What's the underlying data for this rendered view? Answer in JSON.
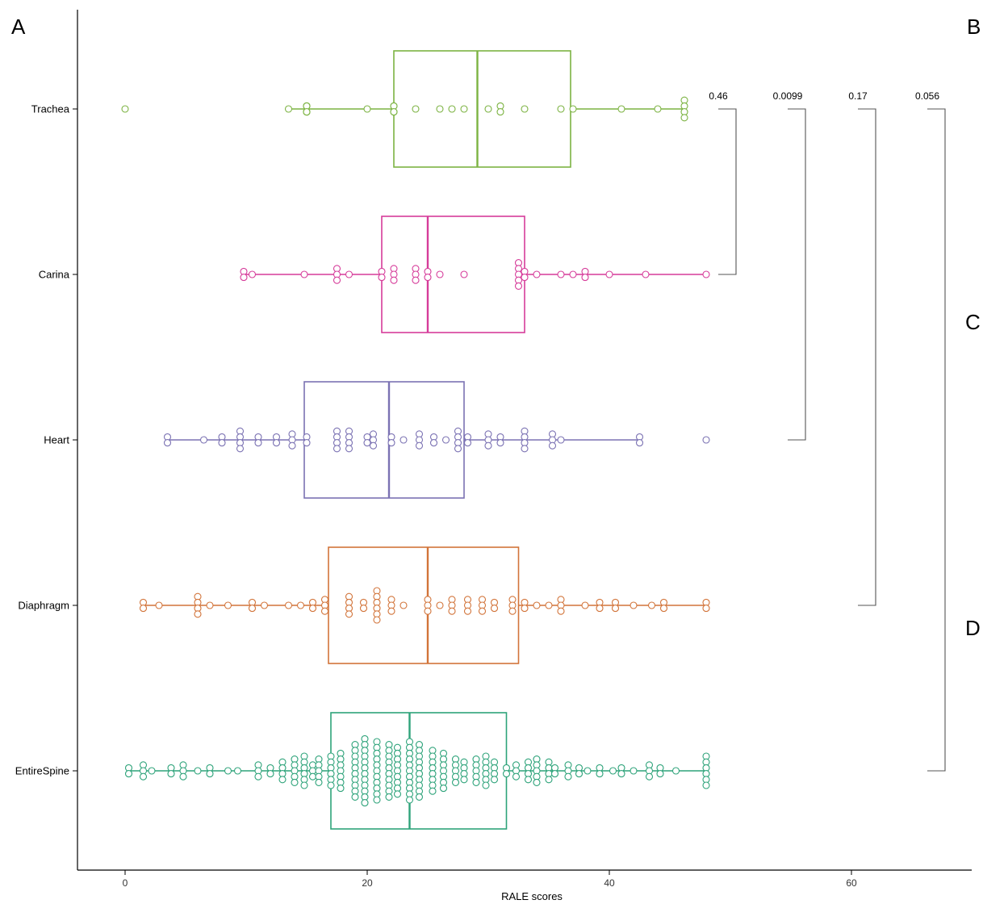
{
  "panel_labels": [
    "A",
    "B",
    "C",
    "D"
  ],
  "colors": {
    "Trachea": "#7cb342",
    "Carina": "#d63c9a",
    "Heart": "#7b72b3",
    "Diaphragm": "#d2743a",
    "EntireSpine": "#2ea37a"
  },
  "chart_data": {
    "type": "box",
    "orientation": "horizontal",
    "xlabel": "RALE scores",
    "ylabel": "",
    "xlim": [
      -4,
      70
    ],
    "xticks": [
      0,
      20,
      40,
      60
    ],
    "categories": [
      "Trachea",
      "Carina",
      "Heart",
      "Diaphragm",
      "EntireSpine"
    ],
    "series": [
      {
        "name": "Trachea",
        "box": {
          "whisker_low": 13.5,
          "q1": 22.2,
          "median": 29.1,
          "q3": 36.8,
          "whisker_high": 46.2
        },
        "outliers": [
          0
        ],
        "points": [
          [
            13.5,
            1
          ],
          [
            15,
            2
          ],
          [
            15,
            2
          ],
          [
            15,
            2
          ],
          [
            20,
            1
          ],
          [
            22.2,
            2
          ],
          [
            22.2,
            2
          ],
          [
            24,
            1
          ],
          [
            26,
            1
          ],
          [
            27,
            1
          ],
          [
            28,
            1
          ],
          [
            30,
            1
          ],
          [
            31,
            2
          ],
          [
            33,
            1
          ],
          [
            36,
            1
          ],
          [
            37,
            1
          ],
          [
            41,
            1
          ],
          [
            44,
            1
          ],
          [
            46.2,
            4
          ],
          [
            0,
            1
          ]
        ]
      },
      {
        "name": "Carina",
        "box": {
          "whisker_low": 9.8,
          "q1": 21.2,
          "median": 25,
          "q3": 33,
          "whisker_high": 48
        },
        "outliers": [],
        "points": [
          [
            9.8,
            2
          ],
          [
            10.5,
            1
          ],
          [
            14.8,
            1
          ],
          [
            17.5,
            3
          ],
          [
            18.5,
            1
          ],
          [
            21.2,
            2
          ],
          [
            22.2,
            3
          ],
          [
            24,
            3
          ],
          [
            25,
            2
          ],
          [
            26,
            1
          ],
          [
            28,
            1
          ],
          [
            32.5,
            5
          ],
          [
            33,
            2
          ],
          [
            34,
            1
          ],
          [
            36,
            1
          ],
          [
            37,
            1
          ],
          [
            38,
            2
          ],
          [
            40,
            1
          ],
          [
            43,
            1
          ],
          [
            48,
            1
          ]
        ]
      },
      {
        "name": "Heart",
        "box": {
          "whisker_low": 3.5,
          "q1": 14.8,
          "median": 21.8,
          "q3": 28,
          "whisker_high": 42.5
        },
        "outliers": [
          48
        ],
        "points": [
          [
            3.5,
            2
          ],
          [
            6.5,
            1
          ],
          [
            8,
            2
          ],
          [
            9.5,
            4
          ],
          [
            11,
            2
          ],
          [
            12.5,
            2
          ],
          [
            13.8,
            3
          ],
          [
            15,
            2
          ],
          [
            17.5,
            4
          ],
          [
            18.5,
            4
          ],
          [
            20,
            2
          ],
          [
            20.5,
            3
          ],
          [
            22,
            2
          ],
          [
            23,
            1
          ],
          [
            24.3,
            3
          ],
          [
            25.5,
            2
          ],
          [
            26.5,
            1
          ],
          [
            27.5,
            4
          ],
          [
            28.3,
            2
          ],
          [
            30,
            3
          ],
          [
            31,
            2
          ],
          [
            33,
            4
          ],
          [
            35.3,
            3
          ],
          [
            36,
            1
          ],
          [
            42.5,
            2
          ],
          [
            48,
            1
          ]
        ]
      },
      {
        "name": "Diaphragm",
        "box": {
          "whisker_low": 1.5,
          "q1": 16.8,
          "median": 25,
          "q3": 32.5,
          "whisker_high": 48
        },
        "outliers": [],
        "points": [
          [
            1.5,
            2
          ],
          [
            2.8,
            1
          ],
          [
            6,
            4
          ],
          [
            7,
            1
          ],
          [
            8.5,
            1
          ],
          [
            10.5,
            2
          ],
          [
            11.5,
            1
          ],
          [
            13.5,
            1
          ],
          [
            14.5,
            1
          ],
          [
            15.5,
            2
          ],
          [
            16.5,
            3
          ],
          [
            18.5,
            4
          ],
          [
            19.7,
            2
          ],
          [
            20.8,
            6
          ],
          [
            22,
            3
          ],
          [
            23,
            1
          ],
          [
            25,
            3
          ],
          [
            26,
            1
          ],
          [
            27,
            3
          ],
          [
            28.3,
            3
          ],
          [
            29.5,
            3
          ],
          [
            30.5,
            2
          ],
          [
            32,
            3
          ],
          [
            33,
            2
          ],
          [
            34,
            1
          ],
          [
            35,
            1
          ],
          [
            36,
            3
          ],
          [
            38,
            1
          ],
          [
            39.2,
            2
          ],
          [
            40.5,
            2
          ],
          [
            42,
            1
          ],
          [
            43.5,
            1
          ],
          [
            44.5,
            2
          ],
          [
            48,
            2
          ]
        ]
      },
      {
        "name": "EntireSpine",
        "box": {
          "whisker_low": 0.3,
          "q1": 17,
          "median": 23.5,
          "q3": 31.5,
          "whisker_high": 48
        },
        "outliers": [],
        "points": [
          [
            0.3,
            2
          ],
          [
            1.5,
            3
          ],
          [
            2.2,
            1
          ],
          [
            3.8,
            2
          ],
          [
            4.8,
            3
          ],
          [
            6,
            1
          ],
          [
            7,
            2
          ],
          [
            8.5,
            1
          ],
          [
            9.3,
            1
          ],
          [
            11,
            3
          ],
          [
            12,
            2
          ],
          [
            13,
            4
          ],
          [
            14,
            5
          ],
          [
            14.8,
            6
          ],
          [
            15.5,
            3
          ],
          [
            16,
            5
          ],
          [
            17,
            6
          ],
          [
            17.8,
            7
          ],
          [
            19,
            10
          ],
          [
            19.8,
            12
          ],
          [
            20.8,
            11
          ],
          [
            21.8,
            10
          ],
          [
            22.5,
            9
          ],
          [
            23.5,
            11
          ],
          [
            24.3,
            10
          ],
          [
            25.4,
            8
          ],
          [
            26.3,
            7
          ],
          [
            27.3,
            5
          ],
          [
            28,
            4
          ],
          [
            29,
            5
          ],
          [
            29.8,
            6
          ],
          [
            30.5,
            4
          ],
          [
            31.5,
            2
          ],
          [
            32.3,
            3
          ],
          [
            33.3,
            4
          ],
          [
            34,
            5
          ],
          [
            35,
            4
          ],
          [
            35.5,
            2
          ],
          [
            36.6,
            3
          ],
          [
            37.5,
            2
          ],
          [
            38.2,
            1
          ],
          [
            39.2,
            2
          ],
          [
            40.3,
            1
          ],
          [
            41,
            2
          ],
          [
            42,
            1
          ],
          [
            43.3,
            3
          ],
          [
            44.2,
            2
          ],
          [
            45.5,
            1
          ],
          [
            48,
            6
          ]
        ]
      }
    ],
    "comparisons": [
      {
        "label": "0.46",
        "from": "Trachea",
        "to": "Carina"
      },
      {
        "label": "0.0099",
        "from": "Trachea",
        "to": "Heart"
      },
      {
        "label": "0.17",
        "from": "Trachea",
        "to": "Diaphragm"
      },
      {
        "label": "0.056",
        "from": "Trachea",
        "to": "EntireSpine"
      }
    ]
  }
}
